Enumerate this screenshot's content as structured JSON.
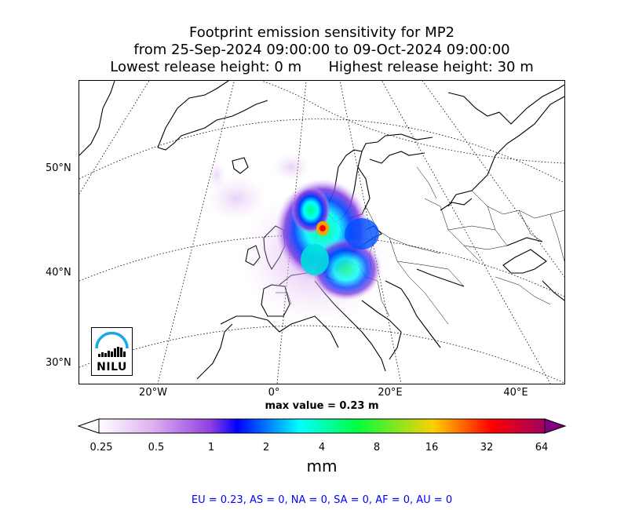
{
  "title": {
    "line1": "Footprint emission sensitivity for MP2",
    "line2": "from 25-Sep-2024 09:00:00 to 09-Oct-2024 09:00:00",
    "line3": "Lowest release height: 0 m      Highest release height: 30 m"
  },
  "lat_labels": [
    "50°N",
    "40°N",
    "30°N"
  ],
  "lon_labels": [
    "20°W",
    "0°",
    "20°E",
    "40°E"
  ],
  "max_value": "max value = 0.23 m",
  "colorbar": {
    "ticks": [
      "0.25",
      "0.5",
      "1",
      "2",
      "4",
      "8",
      "16",
      "32",
      "64"
    ],
    "unit": "mm",
    "colors": [
      "#ffffff",
      "#e0b0f0",
      "#b060e0",
      "#0000ff",
      "#00ffff",
      "#00ff40",
      "#ffd000",
      "#ff0000",
      "#a00060",
      "#800080"
    ]
  },
  "logo": {
    "text": "NILU"
  },
  "footer": "EU = 0.23,  AS = 0,  NA = 0,  SA = 0,  AF = 0,  AU = 0"
}
